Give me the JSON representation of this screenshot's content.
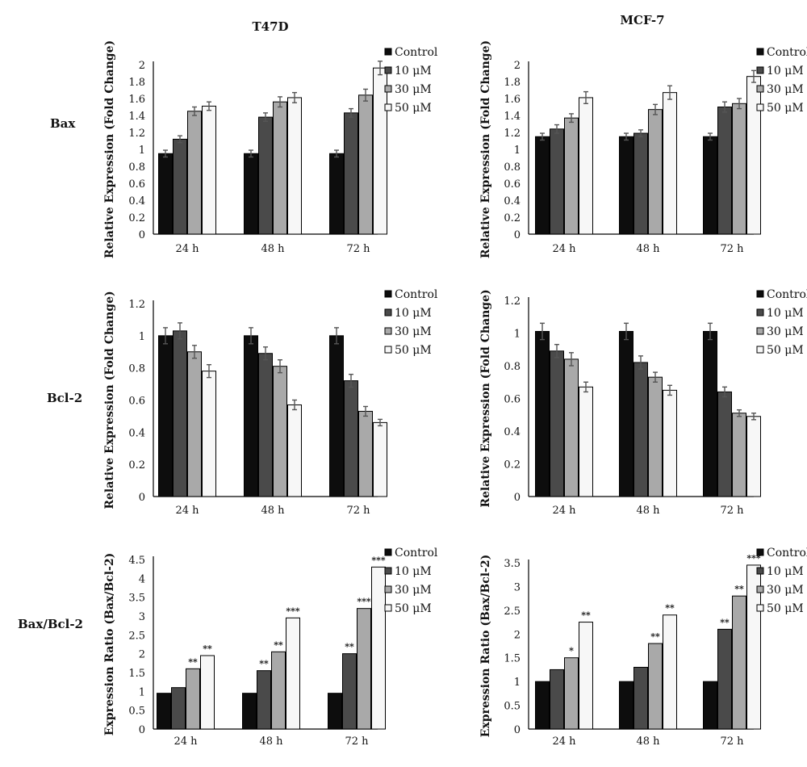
{
  "figure": {
    "columns": [
      "T47D",
      "MCF-7"
    ],
    "rows": [
      "Bax",
      "Bcl-2",
      "Bax/Bcl-2"
    ],
    "legend": [
      "Control",
      "10 μM",
      "30 μM",
      "50 μM"
    ],
    "colors": {
      "Control": "#0d0d0d",
      "10 μM": "#4a4a4a",
      "30 μM": "#a9a9a9",
      "50 μM": "#f7f7f7",
      "error_bar": "#555555",
      "axis": "#000000"
    }
  },
  "chart_data": [
    {
      "id": "bax-t47d",
      "type": "bar",
      "title": "T47D",
      "row_label": "Bax",
      "ylabel": "Relative Expression (Fold Change)",
      "categories": [
        "24 h",
        "48 h",
        "72 h"
      ],
      "ylim": [
        0,
        2
      ],
      "yticks": [
        "0",
        "0.2",
        "0.4",
        "0.6",
        "0.8",
        "1",
        "1.2",
        "1.4",
        "1.6",
        "1.8",
        "2"
      ],
      "series": [
        {
          "name": "Control",
          "values": [
            0.95,
            0.95,
            0.95
          ],
          "errors": [
            0.04,
            0.04,
            0.04
          ]
        },
        {
          "name": "10 μM",
          "values": [
            1.12,
            1.38,
            1.43
          ],
          "errors": [
            0.04,
            0.05,
            0.05
          ]
        },
        {
          "name": "30 μM",
          "values": [
            1.45,
            1.56,
            1.64
          ],
          "errors": [
            0.05,
            0.06,
            0.07
          ]
        },
        {
          "name": "50 μM",
          "values": [
            1.51,
            1.61,
            1.96
          ],
          "errors": [
            0.05,
            0.06,
            0.08
          ]
        }
      ],
      "stars": [
        [
          "",
          "",
          "",
          ""
        ],
        [
          "",
          "",
          "",
          ""
        ],
        [
          "",
          "",
          "",
          ""
        ]
      ]
    },
    {
      "id": "bax-mcf7",
      "type": "bar",
      "title": "MCF-7",
      "row_label": "Bax",
      "ylabel": "Relative Expression (Fold Change)",
      "categories": [
        "24 h",
        "48 h",
        "72 h"
      ],
      "ylim": [
        0,
        2
      ],
      "yticks": [
        "0",
        "0.2",
        "0.4",
        "0.6",
        "0.8",
        "1",
        "1.2",
        "1.4",
        "1.6",
        "1.8",
        "2"
      ],
      "series": [
        {
          "name": "Control",
          "values": [
            1.15,
            1.15,
            1.15
          ],
          "errors": [
            0.04,
            0.04,
            0.04
          ]
        },
        {
          "name": "10 μM",
          "values": [
            1.24,
            1.19,
            1.5
          ],
          "errors": [
            0.05,
            0.04,
            0.06
          ]
        },
        {
          "name": "30 μM",
          "values": [
            1.37,
            1.47,
            1.54
          ],
          "errors": [
            0.05,
            0.06,
            0.06
          ]
        },
        {
          "name": "50 μM",
          "values": [
            1.61,
            1.67,
            1.86
          ],
          "errors": [
            0.07,
            0.08,
            0.07
          ]
        }
      ],
      "stars": [
        [
          "",
          "",
          "",
          ""
        ],
        [
          "",
          "",
          "",
          ""
        ],
        [
          "",
          "",
          "",
          ""
        ]
      ]
    },
    {
      "id": "bcl2-t47d",
      "type": "bar",
      "title": "",
      "row_label": "Bcl-2",
      "ylabel": "Relative Expression (Fold Change)",
      "categories": [
        "24 h",
        "48 h",
        "72 h"
      ],
      "ylim": [
        0,
        1.2
      ],
      "yticks": [
        "0",
        "0.2",
        "0.4",
        "0.6",
        "0.8",
        "1",
        "1.2"
      ],
      "series": [
        {
          "name": "Control",
          "values": [
            1.0,
            1.0,
            1.0
          ],
          "errors": [
            0.05,
            0.05,
            0.05
          ]
        },
        {
          "name": "10 μM",
          "values": [
            1.03,
            0.89,
            0.72
          ],
          "errors": [
            0.05,
            0.04,
            0.04
          ]
        },
        {
          "name": "30 μM",
          "values": [
            0.9,
            0.81,
            0.53
          ],
          "errors": [
            0.04,
            0.04,
            0.03
          ]
        },
        {
          "name": "50 μM",
          "values": [
            0.78,
            0.57,
            0.46
          ],
          "errors": [
            0.04,
            0.03,
            0.02
          ]
        }
      ],
      "stars": [
        [
          "",
          "",
          "",
          ""
        ],
        [
          "",
          "",
          "",
          ""
        ],
        [
          "",
          "",
          "",
          ""
        ]
      ]
    },
    {
      "id": "bcl2-mcf7",
      "type": "bar",
      "title": "",
      "row_label": "Bcl-2",
      "ylabel": "Relative Expression (Fold Change)",
      "categories": [
        "24 h",
        "48 h",
        "72 h"
      ],
      "ylim": [
        0,
        1.2
      ],
      "yticks": [
        "0",
        "0.2",
        "0.4",
        "0.6",
        "0.8",
        "1",
        "1.2"
      ],
      "series": [
        {
          "name": "Control",
          "values": [
            1.01,
            1.01,
            1.01
          ],
          "errors": [
            0.05,
            0.05,
            0.05
          ]
        },
        {
          "name": "10 μM",
          "values": [
            0.89,
            0.82,
            0.64
          ],
          "errors": [
            0.04,
            0.04,
            0.03
          ]
        },
        {
          "name": "30 μM",
          "values": [
            0.84,
            0.73,
            0.51
          ],
          "errors": [
            0.04,
            0.03,
            0.02
          ]
        },
        {
          "name": "50 μM",
          "values": [
            0.67,
            0.65,
            0.49
          ],
          "errors": [
            0.03,
            0.03,
            0.02
          ]
        }
      ],
      "stars": [
        [
          "",
          "",
          "",
          ""
        ],
        [
          "",
          "",
          "",
          ""
        ],
        [
          "",
          "",
          "",
          ""
        ]
      ]
    },
    {
      "id": "ratio-t47d",
      "type": "bar",
      "title": "",
      "row_label": "Bax/Bcl-2",
      "ylabel": "Expression Ratio (Bax/Bcl-2)",
      "categories": [
        "24 h",
        "48 h",
        "72 h"
      ],
      "ylim": [
        0,
        4.5
      ],
      "yticks": [
        "0",
        "0.5",
        "1",
        "1.5",
        "2",
        "2.5",
        "3",
        "3.5",
        "4",
        "4.5"
      ],
      "series": [
        {
          "name": "Control",
          "values": [
            0.95,
            0.95,
            0.95
          ]
        },
        {
          "name": "10 μM",
          "values": [
            1.1,
            1.55,
            2.0
          ]
        },
        {
          "name": "30 μM",
          "values": [
            1.6,
            2.05,
            3.2
          ]
        },
        {
          "name": "50 μM",
          "values": [
            1.95,
            2.95,
            4.3
          ]
        }
      ],
      "stars": [
        [
          "",
          "",
          "**",
          "**"
        ],
        [
          "",
          "**",
          "**",
          "***"
        ],
        [
          "",
          "**",
          "***",
          "***"
        ]
      ]
    },
    {
      "id": "ratio-mcf7",
      "type": "bar",
      "title": "",
      "row_label": "Bax/Bcl-2",
      "ylabel": "Expression Ratio (Bax/Bcl-2)",
      "categories": [
        "24 h",
        "48 h",
        "72 h"
      ],
      "ylim": [
        0,
        3.5
      ],
      "yticks": [
        "0",
        "0.5",
        "1",
        "1.5",
        "2",
        "2.5",
        "3",
        "3.5"
      ],
      "series": [
        {
          "name": "Control",
          "values": [
            1.0,
            1.0,
            1.0
          ]
        },
        {
          "name": "10 μM",
          "values": [
            1.25,
            1.3,
            2.1
          ]
        },
        {
          "name": "30 μM",
          "values": [
            1.5,
            1.8,
            2.8
          ]
        },
        {
          "name": "50 μM",
          "values": [
            2.25,
            2.4,
            3.45
          ]
        }
      ],
      "stars": [
        [
          "",
          "",
          "*",
          "**"
        ],
        [
          "",
          "",
          "**",
          "**"
        ],
        [
          "",
          "**",
          "**",
          "***"
        ]
      ]
    }
  ]
}
